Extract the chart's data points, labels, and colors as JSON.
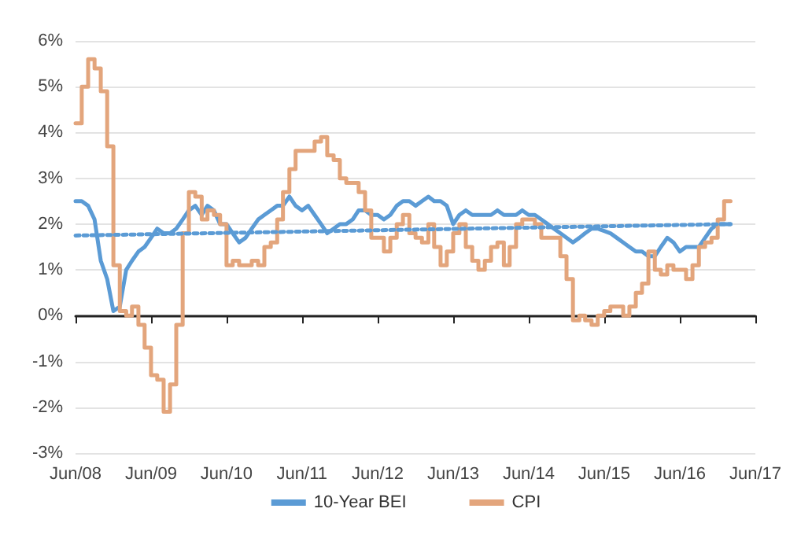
{
  "chart_data": {
    "type": "line",
    "x": [
      "2008-06",
      "2008-07",
      "2008-08",
      "2008-09",
      "2008-10",
      "2008-11",
      "2008-12",
      "2009-01",
      "2009-02",
      "2009-03",
      "2009-04",
      "2009-05",
      "2009-06",
      "2009-07",
      "2009-08",
      "2009-09",
      "2009-10",
      "2009-11",
      "2009-12",
      "2010-01",
      "2010-02",
      "2010-03",
      "2010-04",
      "2010-05",
      "2010-06",
      "2010-07",
      "2010-08",
      "2010-09",
      "2010-10",
      "2010-11",
      "2010-12",
      "2011-01",
      "2011-02",
      "2011-03",
      "2011-04",
      "2011-05",
      "2011-06",
      "2011-07",
      "2011-08",
      "2011-09",
      "2011-10",
      "2011-11",
      "2011-12",
      "2012-01",
      "2012-02",
      "2012-03",
      "2012-04",
      "2012-05",
      "2012-06",
      "2012-07",
      "2012-08",
      "2012-09",
      "2012-10",
      "2012-11",
      "2012-12",
      "2013-01",
      "2013-02",
      "2013-03",
      "2013-04",
      "2013-05",
      "2013-06",
      "2013-07",
      "2013-08",
      "2013-09",
      "2013-10",
      "2013-11",
      "2013-12",
      "2014-01",
      "2014-02",
      "2014-03",
      "2014-04",
      "2014-05",
      "2014-06",
      "2014-07",
      "2014-08",
      "2014-09",
      "2014-10",
      "2014-11",
      "2014-12",
      "2015-01",
      "2015-02",
      "2015-03",
      "2015-04",
      "2015-05",
      "2015-06",
      "2015-07",
      "2015-08",
      "2015-09",
      "2015-10",
      "2015-11",
      "2015-12",
      "2016-01",
      "2016-02",
      "2016-03",
      "2016-04",
      "2016-05",
      "2016-06",
      "2016-07",
      "2016-08",
      "2016-09",
      "2016-10",
      "2016-11",
      "2016-12",
      "2017-01",
      "2017-02"
    ],
    "series": [
      {
        "name": "10-Year BEI",
        "color": "#5b9bd5",
        "values": [
          2.5,
          2.5,
          2.4,
          2.1,
          1.2,
          0.8,
          0.1,
          0.2,
          1.0,
          1.2,
          1.4,
          1.5,
          1.7,
          1.9,
          1.8,
          1.8,
          1.9,
          2.1,
          2.3,
          2.4,
          2.2,
          2.4,
          2.3,
          2.0,
          2.0,
          1.8,
          1.6,
          1.7,
          1.9,
          2.1,
          2.2,
          2.3,
          2.4,
          2.4,
          2.6,
          2.4,
          2.3,
          2.4,
          2.2,
          2.0,
          1.8,
          1.9,
          2.0,
          2.0,
          2.1,
          2.3,
          2.3,
          2.2,
          2.2,
          2.1,
          2.2,
          2.4,
          2.5,
          2.5,
          2.4,
          2.5,
          2.6,
          2.5,
          2.5,
          2.4,
          2.0,
          2.2,
          2.3,
          2.2,
          2.2,
          2.2,
          2.2,
          2.3,
          2.2,
          2.2,
          2.2,
          2.3,
          2.2,
          2.2,
          2.1,
          2.0,
          1.9,
          1.8,
          1.7,
          1.6,
          1.7,
          1.8,
          1.9,
          1.9,
          1.85,
          1.8,
          1.7,
          1.6,
          1.5,
          1.4,
          1.4,
          1.3,
          1.3,
          1.5,
          1.7,
          1.6,
          1.4,
          1.5,
          1.5,
          1.5,
          1.7,
          1.9,
          2.0,
          2.0,
          2.0
        ]
      },
      {
        "name": "CPI",
        "type": "step",
        "color": "#e3a57c",
        "values": [
          4.2,
          5.0,
          5.6,
          5.4,
          4.9,
          3.7,
          1.1,
          0.1,
          0.0,
          0.2,
          -0.2,
          -0.7,
          -1.3,
          -1.4,
          -2.1,
          -1.5,
          -0.2,
          1.8,
          2.7,
          2.6,
          2.1,
          2.3,
          2.2,
          2.0,
          1.1,
          1.2,
          1.1,
          1.1,
          1.2,
          1.1,
          1.5,
          1.6,
          2.1,
          2.7,
          3.2,
          3.6,
          3.6,
          3.6,
          3.8,
          3.9,
          3.5,
          3.4,
          3.0,
          2.9,
          2.9,
          2.7,
          2.3,
          1.7,
          1.7,
          1.4,
          1.7,
          2.0,
          2.2,
          1.8,
          1.7,
          1.6,
          2.0,
          1.5,
          1.1,
          1.4,
          1.8,
          2.0,
          1.5,
          1.2,
          1.0,
          1.2,
          1.5,
          1.6,
          1.1,
          1.5,
          2.0,
          2.1,
          2.1,
          2.0,
          1.7,
          1.7,
          1.7,
          1.3,
          0.8,
          -0.1,
          0.0,
          -0.1,
          -0.2,
          0.0,
          0.1,
          0.2,
          0.2,
          0.0,
          0.2,
          0.5,
          0.7,
          1.4,
          1.0,
          0.9,
          1.1,
          1.0,
          1.0,
          0.8,
          1.1,
          1.5,
          1.6,
          1.7,
          2.1,
          2.5,
          2.5
        ]
      },
      {
        "color": "#5b9bd5",
        "line_style": "dotted",
        "x": [
          "2008-06",
          "2017-02"
        ],
        "values": [
          1.75,
          2.0
        ]
      }
    ],
    "xlim": [
      "2008-06",
      "2017-06"
    ],
    "xticks": [
      {
        "value": "2008-06",
        "label": "Jun/08"
      },
      {
        "value": "2009-06",
        "label": "Jun/09"
      },
      {
        "value": "2010-06",
        "label": "Jun/10"
      },
      {
        "value": "2011-06",
        "label": "Jun/11"
      },
      {
        "value": "2012-06",
        "label": "Jun/12"
      },
      {
        "value": "2013-06",
        "label": "Jun/13"
      },
      {
        "value": "2014-06",
        "label": "Jun/14"
      },
      {
        "value": "2015-06",
        "label": "Jun/15"
      },
      {
        "value": "2016-06",
        "label": "Jun/16"
      },
      {
        "value": "2017-06",
        "label": "Jun/17"
      }
    ],
    "ylim": [
      -3,
      6
    ],
    "yticks": [
      {
        "value": -3,
        "label": "-3%"
      },
      {
        "value": -2,
        "label": "-2%"
      },
      {
        "value": -1,
        "label": "-1%"
      },
      {
        "value": 0,
        "label": "0%"
      },
      {
        "value": 1,
        "label": "1%"
      },
      {
        "value": 2,
        "label": "2%"
      },
      {
        "value": 3,
        "label": "3%"
      },
      {
        "value": 4,
        "label": "4%"
      },
      {
        "value": 5,
        "label": "5%"
      },
      {
        "value": 6,
        "label": "6%"
      }
    ],
    "grid": "y",
    "legend": "bottom",
    "marker": "none",
    "line_style": "solid"
  }
}
